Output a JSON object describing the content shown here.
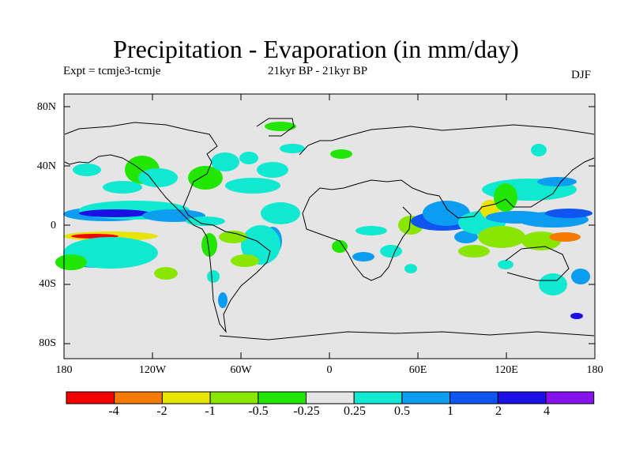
{
  "title": "Precipitation - Evaporation (in mm/day)",
  "experiment": "Expt = tcmje3-tcmje",
  "period": "21kyr BP - 21kyr BP",
  "season": "DJF",
  "map": {
    "background_color": "#e5e5e5",
    "lat_labels": [
      "80N",
      "40N",
      "0",
      "40S",
      "80S"
    ],
    "lon_labels": [
      "180",
      "120W",
      "60W",
      "0",
      "60E",
      "120E",
      "180"
    ]
  },
  "colorbar": {
    "colors": [
      "#f50000",
      "#f57a00",
      "#e8e300",
      "#8ae600",
      "#22e600",
      "#e5e5e5",
      "#10e8d2",
      "#0c9cf0",
      "#0f55f2",
      "#1c0fe6",
      "#8612ee"
    ],
    "labels": [
      "-4",
      "-2",
      "-1",
      "-0.5",
      "-0.25",
      "0.25",
      "0.5",
      "1",
      "2",
      "4"
    ]
  }
}
